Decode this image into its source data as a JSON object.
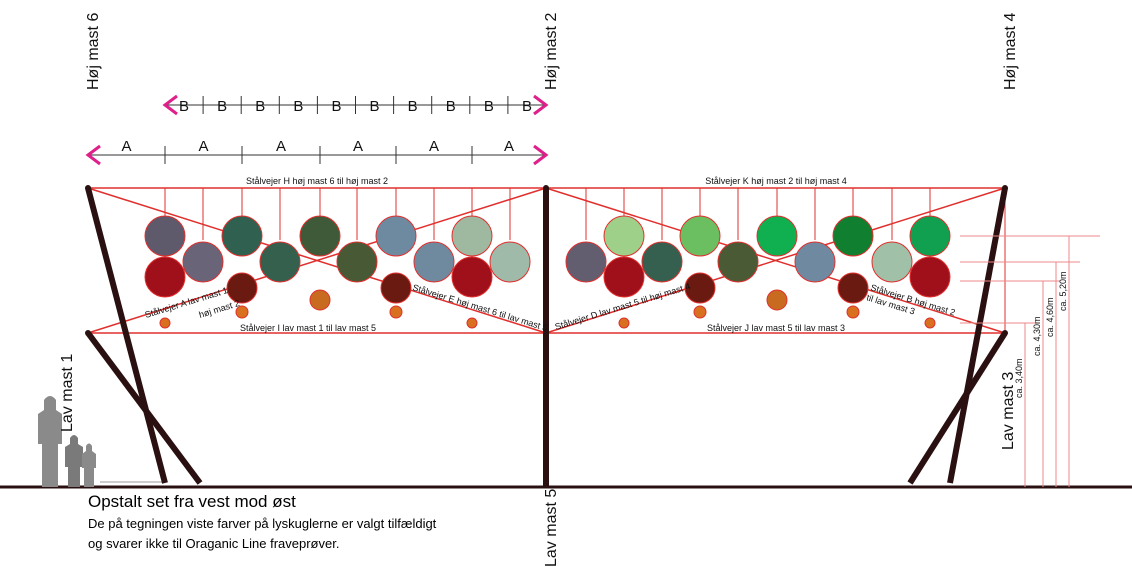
{
  "masts": {
    "high_6": "Høj mast 6",
    "high_2": "Høj mast 2",
    "high_4": "Høj mast 4",
    "low_1": "Lav mast 1",
    "low_3": "Lav mast 3",
    "low_5": "Lav mast 5"
  },
  "dimensions": {
    "b_labels": [
      "B",
      "B",
      "B",
      "B",
      "B",
      "B",
      "B",
      "B",
      "B",
      "B"
    ],
    "a_labels": [
      "A",
      "A",
      "A",
      "A",
      "A",
      "A"
    ]
  },
  "cables": {
    "h": "Stålvejer H høj mast 6 til høj mast 2",
    "k": "Stålvejer K høj mast 2 til høj mast 4",
    "a": [
      "Stålvejer A lav mast 1",
      "høj mast 2"
    ],
    "e": "Stålvejer E høj mast 6 til lav mast 5",
    "i": "Stålvejer I lav mast 1 til lav mast 5",
    "d": "Stålvejer D lav mast 5 til høj mast 4",
    "j": "Stålvejer J lav mast 5 til lav mast 3",
    "b": [
      "Stålvejer B høj mast 2",
      "til lav mast 3"
    ]
  },
  "heights": [
    "ca. 3,40m",
    "ca. 4,30m",
    "ca. 4,60m",
    "ca. 5,20m"
  ],
  "caption": {
    "title": "Opstalt set fra vest mod øst",
    "lines": [
      "De på tegningen viste farver på lyskuglerne er valgt tilfældigt",
      "og svarer ikke til Oraganic Line fraveprøver."
    ]
  }
}
